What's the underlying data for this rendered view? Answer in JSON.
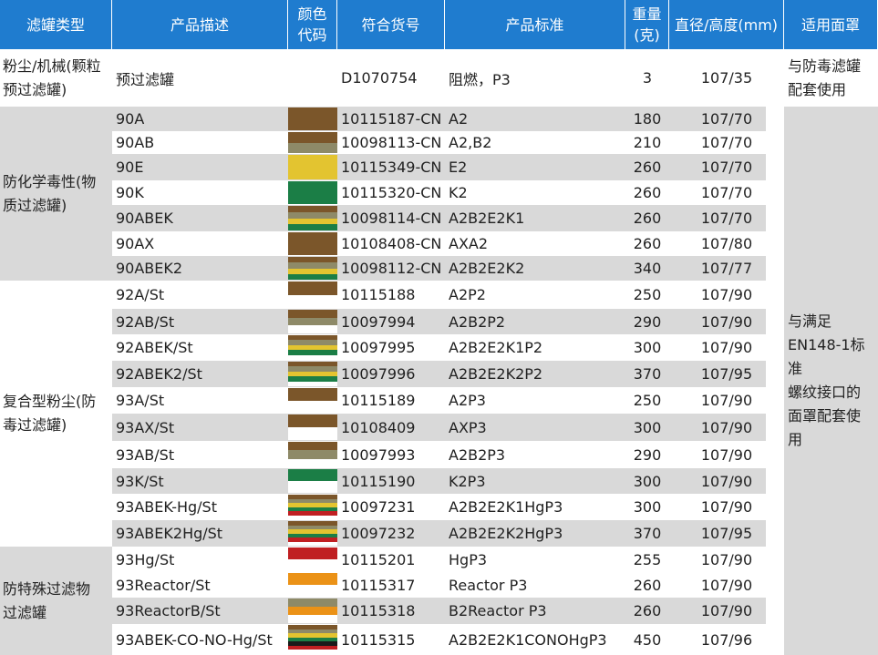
{
  "headers": [
    "滤罐类型",
    "产品描述",
    "颜色\n代码",
    "符合货号",
    "产品标准",
    "重量\n(克)",
    "直径/高度(mm)",
    "适用面罩"
  ],
  "colors": {
    "header_bg": "#1f7ccf",
    "row_alt": "#d9d9d9",
    "A_brown": "#7b562a",
    "B_grey": "#8e8a68",
    "E_yellow": "#e3c430",
    "K_green": "#1b7e46",
    "P_white": "#ffffff",
    "Hg_red": "#c01f22",
    "Reactor_orange": "#eb9217",
    "CO_black": "#1a1a1a"
  },
  "groups": [
    {
      "label": "粉尘/机械(颗粒\n预过滤罐)"
    },
    {
      "label": "防化学毒性(物\n质过滤罐)"
    },
    {
      "label": "复合型粉尘(防\n毒过滤罐)"
    },
    {
      "label": "防特殊过滤物\n过滤罐"
    }
  ],
  "usage": [
    {
      "label": "与防毒滤罐\n配套使用"
    },
    {
      "label": "与满足\nEN148-1标\n准\n螺纹接口的\n面罩配套使\n用"
    }
  ],
  "rows": [
    {
      "desc": "预过滤罐",
      "code": "D1070754",
      "std": "阻燃，P3",
      "weight": "3",
      "dim": "107/35",
      "bands": []
    },
    {
      "desc": "90A",
      "code": "10115187-CN",
      "std": "A2",
      "weight": "180",
      "dim": "107/70",
      "bands": [
        "A_brown"
      ]
    },
    {
      "desc": "90AB",
      "code": "10098113-CN",
      "std": "A2,B2",
      "weight": "210",
      "dim": "107/70",
      "bands": [
        "A_brown",
        "B_grey"
      ]
    },
    {
      "desc": "90E",
      "code": "10115349-CN",
      "std": "E2",
      "weight": "260",
      "dim": "107/70",
      "bands": [
        "E_yellow"
      ]
    },
    {
      "desc": "90K",
      "code": "10115320-CN",
      "std": "K2",
      "weight": "260",
      "dim": "107/70",
      "bands": [
        "K_green"
      ]
    },
    {
      "desc": "90ABEK",
      "code": "10098114-CN",
      "std": "A2B2E2K1",
      "weight": "260",
      "dim": "107/70",
      "bands": [
        "A_brown",
        "B_grey",
        "E_yellow",
        "K_green"
      ]
    },
    {
      "desc": "90AX",
      "code": "10108408-CN",
      "std": "AXA2",
      "weight": "260",
      "dim": "107/80",
      "bands": [
        "A_brown"
      ]
    },
    {
      "desc": "90ABEK2",
      "code": "10098112-CN",
      "std": "A2B2E2K2",
      "weight": "340",
      "dim": "107/77",
      "bands": [
        "A_brown",
        "B_grey",
        "E_yellow",
        "K_green"
      ]
    },
    {
      "desc": "92A/St",
      "code": "10115188",
      "std": "A2P2",
      "weight": "250",
      "dim": "107/90",
      "bands": [
        "A_brown",
        "P_white"
      ]
    },
    {
      "desc": "92AB/St",
      "code": "10097994",
      "std": "A2B2P2",
      "weight": "290",
      "dim": "107/90",
      "bands": [
        "A_brown",
        "B_grey",
        "P_white"
      ]
    },
    {
      "desc": "92ABEK/St",
      "code": "10097995",
      "std": "A2B2E2K1P2",
      "weight": "300",
      "dim": "107/90",
      "bands": [
        "A_brown",
        "B_grey",
        "E_yellow",
        "K_green",
        "P_white"
      ]
    },
    {
      "desc": "92ABEK2/St",
      "code": "10097996",
      "std": "A2B2E2K2P2",
      "weight": "370",
      "dim": "107/95",
      "bands": [
        "A_brown",
        "B_grey",
        "E_yellow",
        "K_green",
        "P_white"
      ]
    },
    {
      "desc": "93A/St",
      "code": "10115189",
      "std": "A2P3",
      "weight": "250",
      "dim": "107/90",
      "bands": [
        "A_brown",
        "P_white"
      ]
    },
    {
      "desc": "93AX/St",
      "code": "10108409",
      "std": "AXP3",
      "weight": "300",
      "dim": "107/90",
      "bands": [
        "A_brown",
        "P_white"
      ]
    },
    {
      "desc": "93AB/St",
      "code": "10097993",
      "std": "A2B2P3",
      "weight": "290",
      "dim": "107/90",
      "bands": [
        "A_brown",
        "B_grey",
        "P_white"
      ]
    },
    {
      "desc": "93K/St",
      "code": "10115190",
      "std": "K2P3",
      "weight": "300",
      "dim": "107/90",
      "bands": [
        "K_green",
        "P_white"
      ]
    },
    {
      "desc": "93ABEK-Hg/St",
      "code": "10097231",
      "std": "A2B2E2K1HgP3",
      "weight": "300",
      "dim": "107/90",
      "bands": [
        "A_brown",
        "B_grey",
        "E_yellow",
        "K_green",
        "Hg_red",
        "P_white"
      ]
    },
    {
      "desc": "93ABEK2Hg/St",
      "code": "10097232",
      "std": "A2B2E2K2HgP3",
      "weight": "370",
      "dim": "107/95",
      "bands": [
        "A_brown",
        "B_grey",
        "E_yellow",
        "K_green",
        "Hg_red",
        "P_white"
      ]
    },
    {
      "desc": "93Hg/St",
      "code": "10115201",
      "std": "HgP3",
      "weight": "255",
      "dim": "107/90",
      "bands": [
        "Hg_red",
        "P_white"
      ]
    },
    {
      "desc": "93Reactor/St",
      "code": "10115317",
      "std": "Reactor P3",
      "weight": "260",
      "dim": "107/90",
      "bands": [
        "Reactor_orange",
        "P_white"
      ]
    },
    {
      "desc": "93ReactorB/St",
      "code": "10115318",
      "std": "B2Reactor P3",
      "weight": "260",
      "dim": "107/90",
      "bands": [
        "B_grey",
        "Reactor_orange",
        "P_white"
      ]
    },
    {
      "desc": "93ABEK-CO-NO-Hg/St",
      "code": "10115315",
      "std": "A2B2E2K1CONOHgP3",
      "weight": "450",
      "dim": "107/96",
      "bands": [
        "A_brown",
        "B_grey",
        "E_yellow",
        "K_green",
        "CO_black",
        "Hg_red",
        "P_white"
      ]
    }
  ]
}
